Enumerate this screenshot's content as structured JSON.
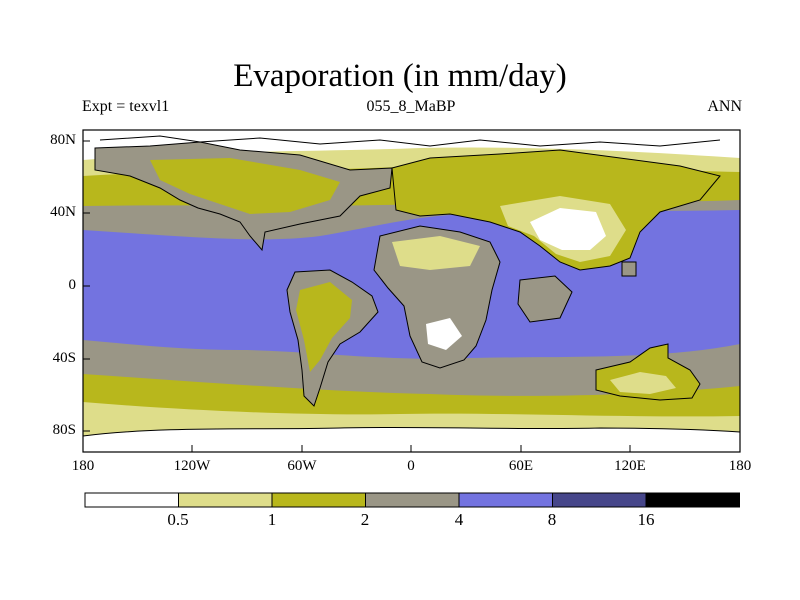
{
  "map": {
    "title": "Evaporation (in mm/day)",
    "experiment_label": "Expt = texvl1",
    "period_label": "055_8_MaBP",
    "season_label": "ANN",
    "lat_ticks": [
      "80N",
      "40N",
      "0",
      "40S",
      "80S"
    ],
    "lon_ticks": [
      "180",
      "120W",
      "60W",
      "0",
      "60E",
      "120E",
      "180"
    ]
  },
  "legend": {
    "levels": [
      "0.5",
      "1",
      "2",
      "4",
      "8",
      "16"
    ],
    "colors": [
      "#ffffff",
      "#dedd8a",
      "#b8b71c",
      "#9a9686",
      "#7373e0",
      "#46468a",
      "#000000"
    ]
  },
  "colors": {
    "low": "#ffffff",
    "light_yellow": "#dedd8a",
    "olive": "#b8b71c",
    "gray": "#9a9686",
    "blue": "#7373e0",
    "dark_blue": "#46468a",
    "black": "#000000"
  }
}
